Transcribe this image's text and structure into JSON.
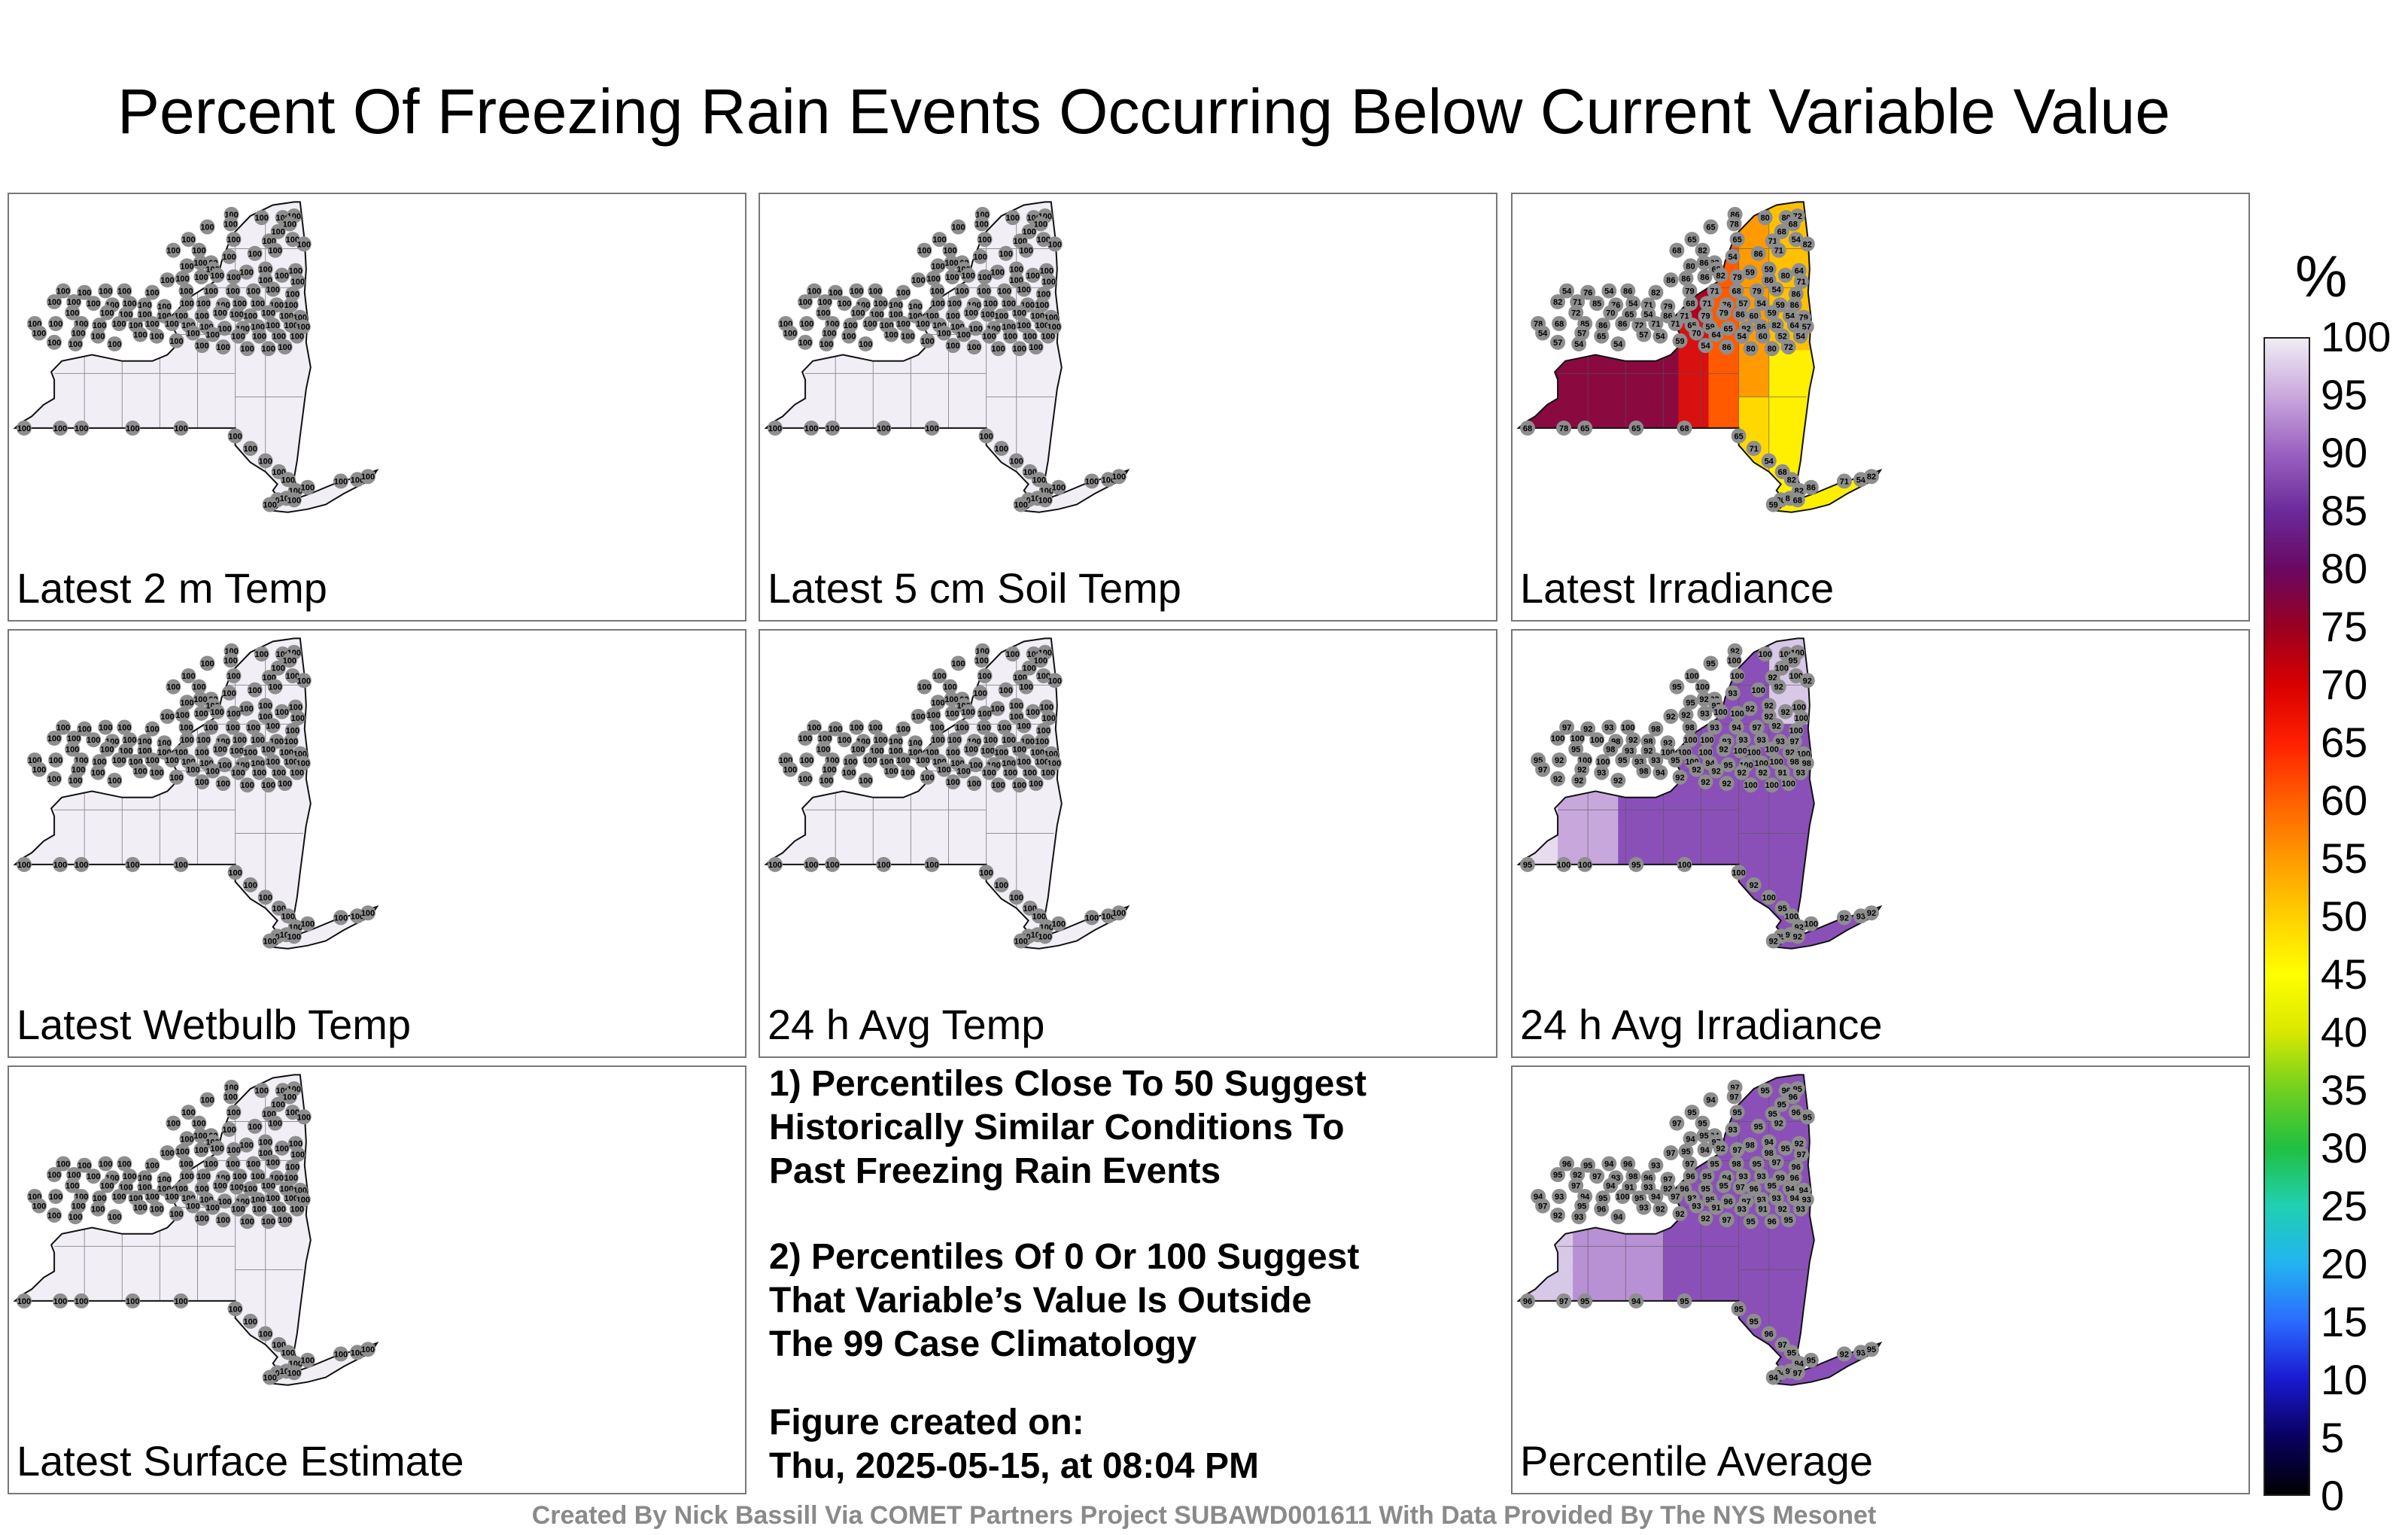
{
  "title": "Percent Of Freezing Rain Events Occurring Below Current Variable Value",
  "panels": [
    {
      "label": "Latest 2 m Temp",
      "fill": "uniform100"
    },
    {
      "label": "Latest 5 cm Soil Temp",
      "fill": "uniform100"
    },
    {
      "label": "Latest Irradiance",
      "fill": "irradiance"
    },
    {
      "label": "Latest Wetbulb Temp",
      "fill": "uniform100"
    },
    {
      "label": "24 h Avg Temp",
      "fill": "uniform100"
    },
    {
      "label": "24 h Avg Irradiance",
      "fill": "avgirr"
    },
    {
      "label": "Latest Surface Estimate",
      "fill": "uniform100"
    },
    {
      "label": "Percentile Average",
      "fill": "average"
    }
  ],
  "notes": {
    "note1": [
      "1) Percentiles Close To 50 Suggest",
      "Historically Similar Conditions To",
      "Past Freezing Rain Events"
    ],
    "note2": [
      "2) Percentiles Of 0 Or 100 Suggest",
      "That Variable’s Value Is Outside",
      "The 99 Case Climatology"
    ],
    "created_label": "Figure created on:",
    "created_value": "Thu, 2025-05-15, at 08:04 PM"
  },
  "footer": "Created By Nick Bassill Via COMET Partners Project SUBAWD001611 With Data Provided By The NYS Mesonet",
  "colorbar": {
    "unit": "%",
    "ticks": [
      "100",
      "95",
      "90",
      "85",
      "80",
      "75",
      "70",
      "65",
      "60",
      "55",
      "50",
      "45",
      "40",
      "35",
      "30",
      "25",
      "20",
      "15",
      "10",
      "5",
      "0"
    ],
    "colors": [
      "#000000",
      "#0a0060",
      "#1a1ad0",
      "#2a6cff",
      "#22b4f0",
      "#20d0b0",
      "#20c040",
      "#70d020",
      "#d8e800",
      "#ffff00",
      "#ffd000",
      "#ff9a00",
      "#ff6000",
      "#ff2000",
      "#d80000",
      "#9a0020",
      "#6a0860",
      "#6a2a9a",
      "#9a60c0",
      "#c8a8dc",
      "#f0ecf4"
    ]
  },
  "stations": {
    "lights": [
      "100",
      "100",
      "100",
      "100",
      "100",
      "100",
      "100",
      "100",
      "100",
      "100",
      "100",
      "100",
      "100",
      "100",
      "100",
      "100",
      "100",
      "100",
      "100",
      "100",
      "100",
      "100",
      "100",
      "100",
      "100",
      "100",
      "100",
      "100",
      "100",
      "100",
      "100",
      "100",
      "100",
      "100",
      "100",
      "100",
      "100",
      "100",
      "100",
      "100",
      "100",
      "100",
      "100",
      "100",
      "100",
      "100",
      "100",
      "100",
      "100",
      "100",
      "100",
      "100",
      "100",
      "100",
      "100",
      "100",
      "100",
      "100",
      "100",
      "100",
      "100",
      "100",
      "100",
      "100",
      "100",
      "100",
      "100",
      "100",
      "100",
      "100",
      "100",
      "100",
      "100",
      "100",
      "100",
      "100",
      "100",
      "100",
      "100",
      "100",
      "100",
      "100",
      "100",
      "100",
      "100",
      "100",
      "100",
      "100",
      "100",
      "100",
      "100",
      "100",
      "100",
      "100",
      "100",
      "100",
      "100",
      "100",
      "100",
      "100",
      "100",
      "100",
      "100",
      "100",
      "100",
      "100",
      "100",
      "100",
      "100",
      "100",
      "100",
      "100",
      "100",
      "100",
      "100",
      "100",
      "100",
      "100",
      "100",
      "100",
      "100",
      "100",
      "100"
    ],
    "irradiance": [
      "86",
      "80",
      "80",
      "72",
      "68",
      "78",
      "65",
      "65",
      "68",
      "65",
      "71",
      "54",
      "68",
      "82",
      "82",
      "86",
      "71",
      "54",
      "82",
      "80",
      "86",
      "68",
      "59",
      "64",
      "86",
      "86",
      "86",
      "82",
      "79",
      "59",
      "86",
      "80",
      "71",
      "54",
      "76",
      "54",
      "86",
      "82",
      "79",
      "71",
      "68",
      "79",
      "54",
      "86",
      "82",
      "71",
      "85",
      "76",
      "54",
      "71",
      "79",
      "68",
      "71",
      "76",
      "57",
      "54",
      "59",
      "86",
      "72",
      "70",
      "65",
      "54",
      "86",
      "71",
      "79",
      "79",
      "86",
      "60",
      "59",
      "54",
      "79",
      "78",
      "68",
      "85",
      "86",
      "86",
      "72",
      "71",
      "71",
      "65",
      "59",
      "65",
      "92",
      "86",
      "82",
      "64",
      "57",
      "54",
      "57",
      "65",
      "57",
      "54",
      "70",
      "64",
      "54",
      "60",
      "52",
      "54",
      "57",
      "54",
      "54",
      "59",
      "54"
    ],
    "avgirr": [
      "92",
      "100",
      "100",
      "100",
      "95",
      "100",
      "100",
      "95",
      "100",
      "100",
      "92",
      "100",
      "95",
      "100",
      "92",
      "100",
      "92",
      "93",
      "92",
      "95",
      "92",
      "92",
      "92",
      "100",
      "92",
      "92",
      "93",
      "100",
      "100",
      "92",
      "92",
      "92",
      "100",
      "97",
      "92",
      "93",
      "100",
      "98",
      "98",
      "93",
      "94",
      "97",
      "92",
      "100",
      "100",
      "100",
      "100",
      "98",
      "92",
      "98",
      "92",
      "100",
      "100",
      "93",
      "93",
      "93",
      "93",
      "97",
      "95",
      "98",
      "93",
      "92",
      "100",
      "100",
      "100",
      "92",
      "100",
      "100",
      "100",
      "92",
      "100",
      "95",
      "92",
      "100",
      "100",
      "95",
      "93",
      "93",
      "95",
      "100",
      "94",
      "95",
      "100",
      "100",
      "100",
      "98",
      "98",
      "97",
      "92",
      "93",
      "98",
      "94",
      "92",
      "92",
      "92",
      "92",
      "91",
      "93",
      "92",
      "92",
      "92",
      "92",
      "92"
    ],
    "average": [
      "97",
      "95",
      "96",
      "95",
      "96",
      "97",
      "95",
      "94",
      "95",
      "95",
      "95",
      "96",
      "97",
      "95",
      "94",
      "95",
      "92",
      "93",
      "95",
      "94",
      "95",
      "97",
      "94",
      "92",
      "97",
      "95",
      "94",
      "92",
      "97",
      "98",
      "98",
      "95",
      "97",
      "96",
      "95",
      "94",
      "96",
      "93",
      "97",
      "95",
      "98",
      "95",
      "97",
      "96",
      "95",
      "92",
      "97",
      "93",
      "98",
      "96",
      "97",
      "96",
      "95",
      "94",
      "93",
      "93",
      "99",
      "96",
      "97",
      "94",
      "91",
      "93",
      "92",
      "96",
      "95",
      "95",
      "97",
      "96",
      "95",
      "94",
      "94",
      "94",
      "93",
      "94",
      "95",
      "100",
      "95",
      "94",
      "97",
      "93",
      "95",
      "96",
      "97",
      "93",
      "93",
      "94",
      "93",
      "97",
      "95",
      "96",
      "93",
      "92",
      "93",
      "91",
      "93",
      "91",
      "92",
      "93",
      "92",
      "93",
      "94",
      "92",
      "92"
    ]
  }
}
